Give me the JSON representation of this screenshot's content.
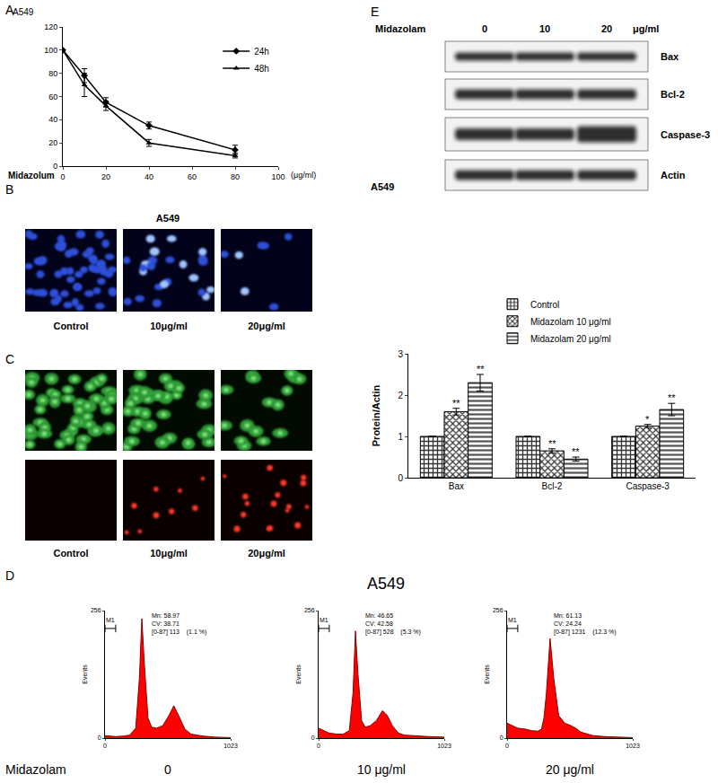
{
  "chart_data": [
    {
      "panel": "A",
      "type": "line",
      "title": "A549",
      "x": [
        0,
        10,
        20,
        40,
        80
      ],
      "series": [
        {
          "name": "24h",
          "color": "#000000",
          "marker": "diamond",
          "values": [
            100,
            78,
            55,
            35,
            14
          ],
          "errors": [
            0,
            6,
            4,
            3,
            4
          ]
        },
        {
          "name": "48h",
          "color": "#000000",
          "marker": "triangle-up",
          "values": [
            100,
            70,
            52,
            20,
            9
          ],
          "errors": [
            0,
            10,
            4,
            3,
            2
          ]
        }
      ],
      "xlabel": "Midazolum",
      "xunit": "(μg/ml)",
      "xlim": [
        0,
        100
      ],
      "xticks": [
        0,
        20,
        40,
        60,
        80,
        100
      ],
      "ylim": [
        0,
        120
      ],
      "yticks": [
        0,
        20,
        40,
        60,
        80,
        100,
        120
      ],
      "legend": "upper right",
      "grid": false
    },
    {
      "panel": "E",
      "type": "bar",
      "categories": [
        "Bax",
        "Bcl-2",
        "Caspase-3"
      ],
      "series": [
        {
          "name": "Control",
          "color": "#333333",
          "marker": "crosshatch",
          "values": [
            1,
            1,
            1
          ],
          "errors": [
            0,
            0,
            0
          ],
          "stars": [
            null,
            null,
            null
          ]
        },
        {
          "name": "Midazolam 10 μg/ml",
          "color": "#333333",
          "marker": "checker",
          "values": [
            1.6,
            0.65,
            1.25
          ],
          "errors": [
            0.08,
            0.05,
            0.04
          ],
          "stars": [
            "**",
            "**",
            "*"
          ]
        },
        {
          "name": "Midazolam 20 μg/ml",
          "color": "#555555",
          "marker": "stripes",
          "values": [
            2.3,
            0.45,
            1.65
          ],
          "errors": [
            0.2,
            0.05,
            0.15
          ],
          "stars": [
            "**",
            "**",
            "**"
          ]
        }
      ],
      "ylabel": "Protein/Actin",
      "ylim": [
        0,
        3
      ],
      "yticks": [
        0,
        1,
        2,
        3
      ],
      "legend": "top",
      "grid": false
    },
    {
      "panel": "D",
      "type": "area",
      "color": "#ff0000",
      "dose": "0",
      "stats": [
        "Mn: 58.97",
        "CV: 38.71",
        "[0-87] 113    (1.1 %)"
      ],
      "gate_label": "M1",
      "gate": [
        0,
        87
      ],
      "x": [
        0,
        40,
        87,
        150,
        200,
        250,
        280,
        300,
        320,
        350,
        380,
        420,
        470,
        520,
        560,
        600,
        650,
        700,
        800,
        900,
        1023
      ],
      "values": [
        5,
        4,
        3,
        4,
        6,
        20,
        120,
        240,
        150,
        40,
        22,
        20,
        25,
        45,
        65,
        45,
        18,
        8,
        4,
        2,
        1
      ],
      "ylabel": "Events",
      "xlim": [
        0,
        1023
      ],
      "xticks": [
        0,
        1023
      ],
      "ylim": [
        0,
        256
      ],
      "yticks": [
        0,
        256
      ]
    },
    {
      "panel": "D",
      "type": "area",
      "color": "#ff0000",
      "dose": "10 μg/ml",
      "stats": [
        "Mn: 46.65",
        "CV: 42.58",
        "[0-87] 528    (5.3 %)"
      ],
      "gate_label": "M1",
      "gate": [
        0,
        87
      ],
      "x": [
        0,
        40,
        87,
        150,
        200,
        250,
        280,
        300,
        320,
        350,
        380,
        420,
        470,
        520,
        560,
        600,
        650,
        700,
        800,
        900,
        1023
      ],
      "values": [
        20,
        15,
        10,
        8,
        8,
        15,
        90,
        215,
        130,
        35,
        22,
        25,
        35,
        55,
        45,
        25,
        10,
        6,
        4,
        3,
        2
      ],
      "ylabel": "Events",
      "xlim": [
        0,
        1023
      ],
      "xticks": [
        0,
        1023
      ],
      "ylim": [
        0,
        256
      ],
      "yticks": [
        0,
        256
      ]
    },
    {
      "panel": "D",
      "type": "area",
      "color": "#ff0000",
      "dose": "20 μg/ml",
      "stats": [
        "Mn: 61.13",
        "CV: 24.24",
        "[0-87] 1231    (12.3 %)"
      ],
      "gate_label": "M1",
      "gate": [
        0,
        87
      ],
      "x": [
        0,
        40,
        87,
        150,
        200,
        250,
        280,
        300,
        320,
        350,
        380,
        420,
        470,
        520,
        560,
        600,
        650,
        700,
        800,
        900,
        1023
      ],
      "values": [
        30,
        25,
        20,
        18,
        15,
        14,
        18,
        40,
        90,
        200,
        120,
        45,
        30,
        25,
        20,
        12,
        8,
        5,
        3,
        2,
        1
      ],
      "ylabel": "Events",
      "xlim": [
        0,
        1023
      ],
      "xticks": [
        0,
        1023
      ],
      "ylim": [
        0,
        256
      ],
      "yticks": [
        0,
        256
      ]
    }
  ],
  "panel_B": {
    "letter": "B",
    "title": "A549",
    "labels": [
      "Control",
      "10μg/ml",
      "20μg/ml"
    ]
  },
  "panel_C": {
    "letter": "C",
    "labels": [
      "Control",
      "10μg/ml",
      "20μg/ml"
    ]
  },
  "panel_D": {
    "letter": "D",
    "title": "A549",
    "row_label": "Midazolam"
  },
  "panel_E_blot": {
    "letter": "E",
    "treatment": "Midazolam",
    "doses": [
      "0",
      "10",
      "20"
    ],
    "unit": "μg/ml",
    "proteins": [
      "Bax",
      "Bcl-2",
      "Caspase-3",
      "Actin"
    ],
    "cell_line": "A549"
  }
}
